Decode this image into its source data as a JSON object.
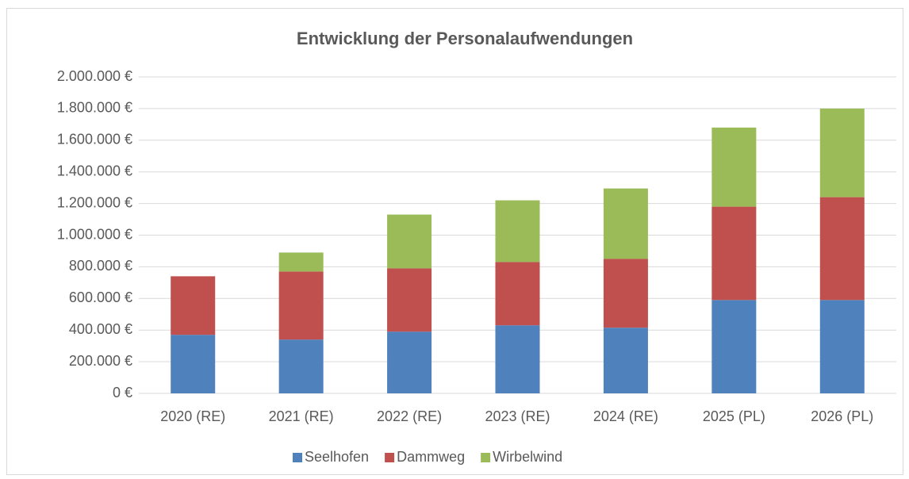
{
  "chart_data": {
    "type": "stacked_bar",
    "title": "Entwicklung der Personalaufwendungen",
    "categories": [
      "2020 (RE)",
      "2021 (RE)",
      "2022 (RE)",
      "2023 (RE)",
      "2024 (RE)",
      "2025 (PL)",
      "2026 (PL)"
    ],
    "series": [
      {
        "name": "Seelhofen",
        "color": "#4f81bd",
        "values": [
          370000,
          340000,
          390000,
          430000,
          415000,
          590000,
          590000
        ]
      },
      {
        "name": "Dammweg",
        "color": "#c0504d",
        "values": [
          370000,
          430000,
          400000,
          400000,
          435000,
          590000,
          650000
        ]
      },
      {
        "name": "Wirbelwind",
        "color": "#9bbb59",
        "values": [
          0,
          120000,
          340000,
          390000,
          445000,
          500000,
          560000
        ]
      }
    ],
    "ylim": [
      0,
      2000000
    ],
    "yticks": [
      {
        "value": 0,
        "label": "0 €"
      },
      {
        "value": 200000,
        "label": "200.000 €"
      },
      {
        "value": 400000,
        "label": "400.000 €"
      },
      {
        "value": 600000,
        "label": "600.000 €"
      },
      {
        "value": 800000,
        "label": "800.000 €"
      },
      {
        "value": 1000000,
        "label": "1.000.000 €"
      },
      {
        "value": 1200000,
        "label": "1.200.000 €"
      },
      {
        "value": 1400000,
        "label": "1.400.000 €"
      },
      {
        "value": 1600000,
        "label": "1.600.000 €"
      },
      {
        "value": 1800000,
        "label": "1.800.000 €"
      },
      {
        "value": 2000000,
        "label": "2.000.000 €"
      }
    ],
    "grid": true,
    "legend": "bottom"
  }
}
